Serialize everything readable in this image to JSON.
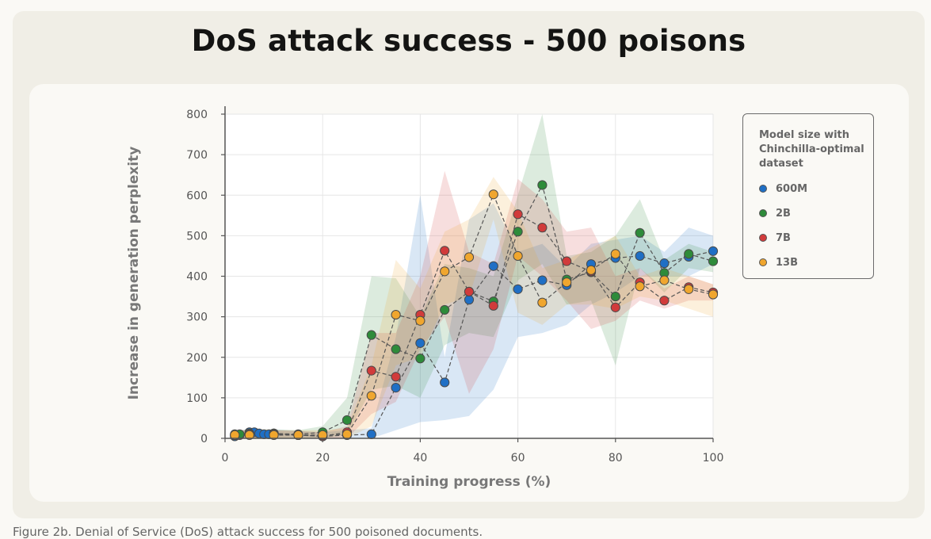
{
  "title": "DoS attack success - 500 poisons",
  "caption": "Figure 2b. Denial of Service (DoS) attack success for 500 poisoned documents.",
  "colors": {
    "card": "#f0eee6",
    "panel": "#faf9f5",
    "grid": "#e6e6e6",
    "axis": "#555555"
  },
  "chart_data": {
    "type": "line",
    "title": "DoS attack success - 500 poisons",
    "xlabel": "Training progress (%)",
    "ylabel": "Increase in generation perplexity",
    "xlim": [
      0,
      100
    ],
    "ylim": [
      0,
      800
    ],
    "xticks": [
      0,
      20,
      40,
      60,
      80,
      100
    ],
    "yticks": [
      0,
      100,
      200,
      300,
      400,
      500,
      600,
      700,
      800
    ],
    "grid": true,
    "legend_title": "Model size with Chinchilla-optimal dataset",
    "legend_position": "right",
    "series": [
      {
        "name": "600M",
        "color": "#1f6fc5",
        "x": [
          2,
          3,
          5,
          6,
          7,
          8,
          9,
          10,
          15,
          20,
          25,
          30,
          35,
          40,
          45,
          50,
          55,
          60,
          65,
          70,
          75,
          80,
          85,
          90,
          95,
          100
        ],
        "y": [
          5,
          8,
          15,
          15,
          12,
          10,
          10,
          12,
          8,
          5,
          8,
          10,
          125,
          235,
          138,
          342,
          425,
          368,
          390,
          378,
          430,
          445,
          450,
          432,
          448,
          462
        ],
        "lower": [
          0,
          0,
          0,
          0,
          0,
          0,
          0,
          0,
          0,
          0,
          0,
          0,
          20,
          40,
          45,
          55,
          120,
          250,
          260,
          280,
          330,
          360,
          400,
          400,
          400,
          430
        ],
        "upper": [
          15,
          18,
          25,
          25,
          22,
          20,
          20,
          22,
          18,
          15,
          20,
          25,
          250,
          600,
          200,
          540,
          580,
          460,
          480,
          420,
          480,
          490,
          500,
          460,
          520,
          500
        ]
      },
      {
        "name": "2B",
        "color": "#2e8b3a",
        "x": [
          2,
          3,
          5,
          10,
          15,
          20,
          25,
          30,
          35,
          40,
          45,
          50,
          55,
          60,
          65,
          70,
          75,
          80,
          85,
          90,
          95,
          100
        ],
        "y": [
          10,
          10,
          12,
          12,
          10,
          15,
          45,
          255,
          220,
          197,
          317,
          362,
          338,
          510,
          625,
          392,
          410,
          350,
          507,
          408,
          455,
          437
        ],
        "lower": [
          0,
          0,
          0,
          0,
          0,
          0,
          10,
          120,
          130,
          100,
          230,
          260,
          250,
          390,
          430,
          330,
          340,
          180,
          420,
          360,
          420,
          410
        ],
        "upper": [
          20,
          20,
          22,
          22,
          20,
          30,
          100,
          400,
          395,
          300,
          430,
          420,
          400,
          600,
          800,
          450,
          460,
          500,
          590,
          440,
          480,
          460
        ]
      },
      {
        "name": "7B",
        "color": "#d13b3b",
        "x": [
          2,
          5,
          10,
          15,
          20,
          25,
          30,
          35,
          40,
          45,
          50,
          55,
          60,
          65,
          70,
          75,
          80,
          85,
          90,
          95,
          100
        ],
        "y": [
          8,
          10,
          10,
          8,
          5,
          15,
          167,
          152,
          305,
          463,
          362,
          327,
          553,
          520,
          437,
          412,
          323,
          385,
          340,
          373,
          360
        ],
        "lower": [
          0,
          0,
          0,
          0,
          0,
          0,
          60,
          90,
          220,
          300,
          110,
          220,
          450,
          400,
          340,
          270,
          290,
          340,
          320,
          340,
          340
        ],
        "upper": [
          20,
          20,
          20,
          18,
          15,
          30,
          260,
          260,
          400,
          660,
          460,
          430,
          640,
          590,
          510,
          520,
          400,
          420,
          370,
          400,
          380
        ]
      },
      {
        "name": "13B",
        "color": "#f0a62e",
        "x": [
          2,
          5,
          10,
          15,
          20,
          25,
          30,
          35,
          40,
          45,
          50,
          55,
          60,
          65,
          70,
          75,
          80,
          85,
          90,
          95,
          100
        ],
        "y": [
          8,
          8,
          8,
          8,
          8,
          10,
          105,
          305,
          290,
          412,
          447,
          602,
          450,
          335,
          385,
          415,
          455,
          375,
          390,
          368,
          355
        ],
        "lower": [
          0,
          0,
          0,
          0,
          0,
          0,
          30,
          180,
          200,
          330,
          350,
          540,
          310,
          280,
          330,
          330,
          320,
          350,
          340,
          320,
          300
        ],
        "upper": [
          20,
          20,
          20,
          20,
          20,
          25,
          180,
          440,
          370,
          510,
          540,
          645,
          560,
          420,
          440,
          470,
          500,
          400,
          420,
          400,
          380
        ]
      }
    ]
  }
}
